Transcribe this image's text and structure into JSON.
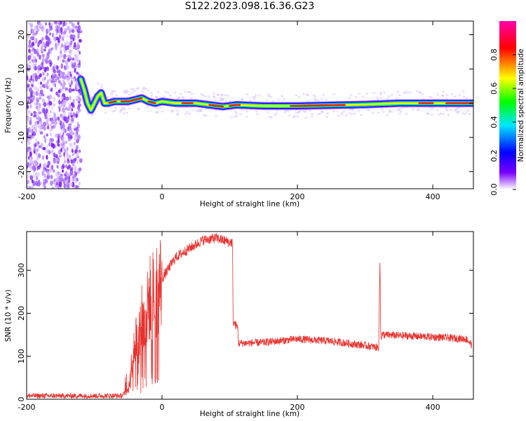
{
  "title": "S122.2023.098.16.36.G23",
  "chart_data": [
    {
      "type": "heatmap",
      "title": "S122.2023.098.16.36.G23",
      "xlabel": "Height of straight line (km)",
      "ylabel": "Frequency (Hz)",
      "xlim": [
        -200,
        460
      ],
      "ylim": [
        -25,
        24
      ],
      "xticks": [
        -200,
        0,
        200,
        400
      ],
      "yticks": [
        -20,
        -10,
        0,
        10,
        20
      ],
      "grid": false,
      "colorbar": {
        "label": "Normalized spectral amplitude",
        "range": [
          0,
          1
        ],
        "ticks": [
          "0.0",
          "0.2",
          "0.4",
          "0.6",
          "0.8"
        ],
        "colors": [
          "#ffffff",
          "#7a00ff",
          "#0000ff",
          "#00e5ff",
          "#00ff00",
          "#ffff00",
          "#ff0000",
          "#ff00aa"
        ]
      },
      "noise_region_km": [
        -200,
        -120
      ],
      "ridge": {
        "x": [
          -120,
          -115,
          -110,
          -105,
          -100,
          -95,
          -90,
          -85,
          -80,
          -70,
          -50,
          -30,
          -20,
          -10,
          0,
          20,
          50,
          70,
          90,
          110,
          150,
          200,
          250,
          300,
          350,
          400,
          460
        ],
        "y": [
          7,
          4,
          0,
          -2,
          0,
          2,
          3,
          0,
          0,
          0.5,
          0.5,
          1.5,
          0.5,
          0,
          0.5,
          0,
          0,
          -0.5,
          -1,
          -0.5,
          -0.8,
          -0.8,
          -0.6,
          -0.4,
          0,
          0,
          0
        ]
      }
    },
    {
      "type": "line",
      "xlabel": "Height of straight line (km)",
      "ylabel": "SNR (10 * v/v)",
      "xlim": [
        -200,
        460
      ],
      "ylim": [
        0,
        390
      ],
      "xticks": [
        -200,
        0,
        200,
        400
      ],
      "yticks": [
        0,
        100,
        200,
        300
      ],
      "grid": false,
      "color": "#e8322e",
      "series": [
        {
          "x": [
            -200,
            -150,
            -100,
            -60,
            -50,
            -45,
            -40,
            -35,
            -30,
            -25,
            -20,
            -10,
            0,
            20,
            40,
            60,
            80,
            100,
            104,
            105,
            110,
            112,
            113,
            150,
            200,
            250,
            300,
            320,
            322,
            323,
            324,
            325,
            350,
            400,
            450,
            458
          ],
          "y": [
            8,
            8,
            8,
            8,
            20,
            80,
            150,
            120,
            200,
            160,
            230,
            250,
            280,
            330,
            350,
            370,
            375,
            365,
            365,
            180,
            170,
            165,
            130,
            132,
            140,
            135,
            125,
            120,
            330,
            150,
            145,
            150,
            148,
            145,
            140,
            125
          ]
        }
      ]
    }
  ]
}
